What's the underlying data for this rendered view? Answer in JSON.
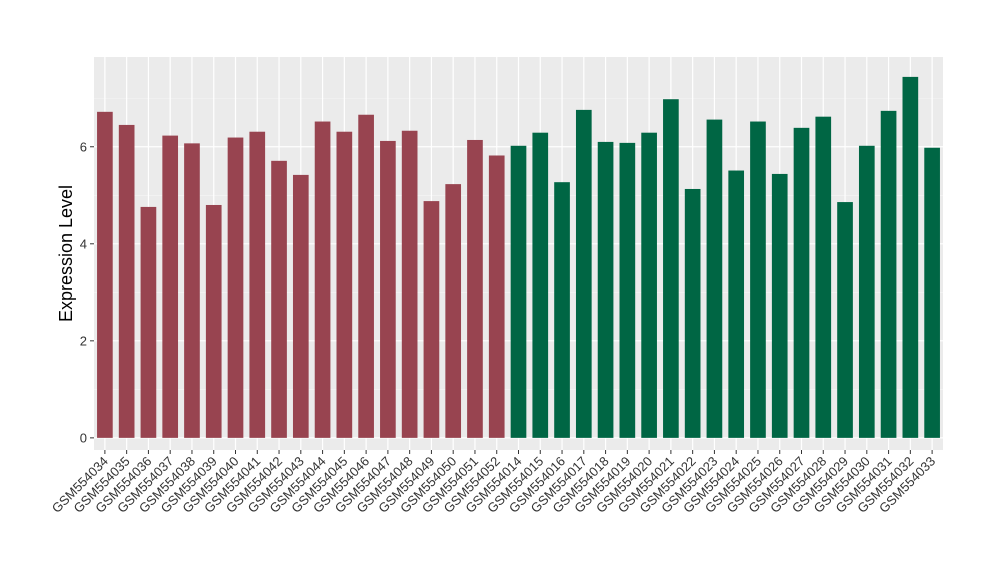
{
  "chart_data": {
    "type": "bar",
    "title": "",
    "xlabel": "",
    "ylabel": "Expression Level",
    "ylim": [
      -0.25,
      7.85
    ],
    "yticks": [
      0,
      2,
      4,
      6
    ],
    "grid": true,
    "background": "#EBEBEB",
    "group_colors": [
      "#984450",
      "#006644"
    ],
    "categories": [
      "GSM554034",
      "GSM554035",
      "GSM554036",
      "GSM554037",
      "GSM554038",
      "GSM554039",
      "GSM554040",
      "GSM554041",
      "GSM554042",
      "GSM554043",
      "GSM554044",
      "GSM554045",
      "GSM554046",
      "GSM554047",
      "GSM554048",
      "GSM554049",
      "GSM554050",
      "GSM554051",
      "GSM554052",
      "GSM554014",
      "GSM554015",
      "GSM554016",
      "GSM554017",
      "GSM554018",
      "GSM554019",
      "GSM554020",
      "GSM554021",
      "GSM554022",
      "GSM554023",
      "GSM554024",
      "GSM554025",
      "GSM554026",
      "GSM554027",
      "GSM554028",
      "GSM554029",
      "GSM554030",
      "GSM554031",
      "GSM554032",
      "GSM554033"
    ],
    "values": [
      6.72,
      6.45,
      4.76,
      6.23,
      6.07,
      4.8,
      6.19,
      6.31,
      5.71,
      5.42,
      6.52,
      6.31,
      6.66,
      6.12,
      6.33,
      4.88,
      5.23,
      6.14,
      5.82,
      6.02,
      6.29,
      5.27,
      6.76,
      6.1,
      6.08,
      6.29,
      6.98,
      5.13,
      6.56,
      5.51,
      6.52,
      5.44,
      6.39,
      6.62,
      4.86,
      6.02,
      6.74,
      7.44,
      5.98
    ],
    "group": [
      0,
      0,
      0,
      0,
      0,
      0,
      0,
      0,
      0,
      0,
      0,
      0,
      0,
      0,
      0,
      0,
      0,
      0,
      0,
      1,
      1,
      1,
      1,
      1,
      1,
      1,
      1,
      1,
      1,
      1,
      1,
      1,
      1,
      1,
      1,
      1,
      1,
      1,
      1
    ]
  }
}
